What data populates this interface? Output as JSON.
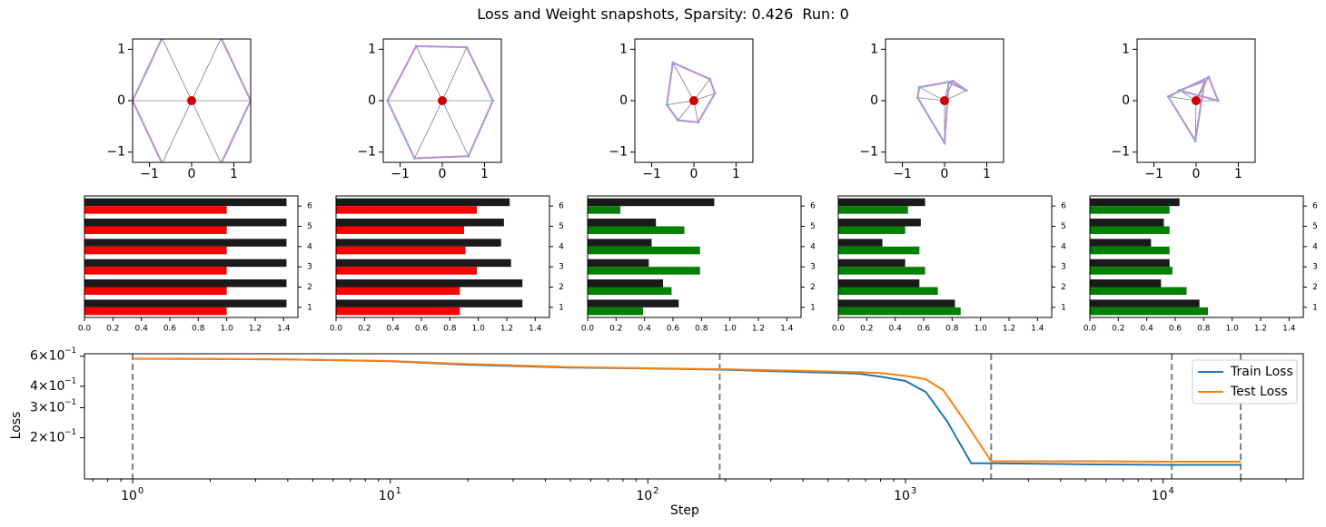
{
  "figure": {
    "title_prefix": "Loss and Weight snapshots, Sparsity:",
    "sparsity": "0.426",
    "run_label": "Run:",
    "run": "0"
  },
  "colors": {
    "black_bar": "#1a1a1a",
    "red_bar": "#ff0000",
    "green_bar": "#008000",
    "train": "#1f77b4",
    "test": "#ff7f0e",
    "dash": "#808080",
    "point": "#d00000",
    "polygon": "#d87fd0",
    "polygon_dash": "#8fa8d8"
  },
  "chart_data": [
    {
      "type": "scatter",
      "name": "snapshot-1",
      "xlim": [
        -1.4,
        1.4
      ],
      "ylim": [
        -1.2,
        1.2
      ],
      "xticks": [
        -1,
        0,
        1
      ],
      "yticks": [
        -1,
        0,
        1
      ],
      "tick_labels": [
        "−1",
        "0",
        "1"
      ],
      "points": [
        [
          1.4,
          0.0
        ],
        [
          0.7,
          1.22
        ],
        [
          -0.7,
          1.22
        ],
        [
          -1.4,
          0.0
        ],
        [
          -0.7,
          -1.22
        ],
        [
          0.7,
          -1.22
        ]
      ]
    },
    {
      "type": "scatter",
      "name": "snapshot-2",
      "xlim": [
        -1.4,
        1.4
      ],
      "ylim": [
        -1.2,
        1.2
      ],
      "xticks": [
        -1,
        0,
        1
      ],
      "yticks": [
        -1,
        0,
        1
      ],
      "tick_labels": [
        "−1",
        "0",
        "1"
      ],
      "points": [
        [
          1.2,
          0.0
        ],
        [
          0.58,
          1.04
        ],
        [
          -0.62,
          1.06
        ],
        [
          -1.3,
          0.0
        ],
        [
          -0.66,
          -1.12
        ],
        [
          0.62,
          -1.08
        ]
      ]
    },
    {
      "type": "scatter",
      "name": "snapshot-3",
      "xlim": [
        -1.4,
        1.4
      ],
      "ylim": [
        -1.2,
        1.2
      ],
      "xticks": [
        -1,
        0,
        1
      ],
      "yticks": [
        -1,
        0,
        1
      ],
      "tick_labels": [
        "−1",
        "0",
        "1"
      ],
      "points": [
        [
          -0.5,
          0.74
        ],
        [
          0.38,
          0.42
        ],
        [
          0.5,
          0.14
        ],
        [
          0.1,
          -0.42
        ],
        [
          -0.38,
          -0.38
        ],
        [
          -0.64,
          -0.08
        ]
      ]
    },
    {
      "type": "scatter",
      "name": "snapshot-4",
      "xlim": [
        -1.4,
        1.4
      ],
      "ylim": [
        -1.2,
        1.2
      ],
      "xticks": [
        -1,
        0,
        1
      ],
      "yticks": [
        -1,
        0,
        1
      ],
      "tick_labels": [
        "−1",
        "0",
        "1"
      ],
      "points": [
        [
          0.52,
          0.2
        ],
        [
          0.2,
          0.38
        ],
        [
          -0.6,
          0.26
        ],
        [
          -0.64,
          0.06
        ],
        [
          0.0,
          -0.82
        ],
        [
          0.1,
          0.36
        ]
      ]
    },
    {
      "type": "scatter",
      "name": "snapshot-5",
      "xlim": [
        -1.4,
        1.4
      ],
      "ylim": [
        -1.2,
        1.2
      ],
      "xticks": [
        -1,
        0,
        1
      ],
      "yticks": [
        -1,
        0,
        1
      ],
      "tick_labels": [
        "−1",
        "0",
        "1"
      ],
      "points": [
        [
          0.52,
          0.0
        ],
        [
          0.3,
          0.46
        ],
        [
          -0.66,
          0.08
        ],
        [
          -0.02,
          -0.78
        ],
        [
          0.2,
          0.38
        ],
        [
          -0.4,
          0.2
        ]
      ]
    },
    {
      "type": "bar",
      "orientation": "horizontal",
      "name": "bars-1",
      "categories": [
        "1",
        "2",
        "3",
        "4",
        "5",
        "6"
      ],
      "xlim": [
        0,
        1.5
      ],
      "xticks": [
        "0.0",
        "0.2",
        "0.4",
        "0.6",
        "0.8",
        "1.0",
        "1.2",
        "1.4"
      ],
      "series": [
        {
          "name": "norm",
          "color": "black",
          "values": [
            1.42,
            1.42,
            1.42,
            1.42,
            1.42,
            1.42
          ]
        },
        {
          "name": "feature",
          "color": "red",
          "values": [
            1.0,
            1.0,
            1.0,
            1.0,
            1.0,
            1.0
          ]
        }
      ]
    },
    {
      "type": "bar",
      "orientation": "horizontal",
      "name": "bars-2",
      "categories": [
        "1",
        "2",
        "3",
        "4",
        "5",
        "6"
      ],
      "xlim": [
        0,
        1.5
      ],
      "xticks": [
        "0.0",
        "0.2",
        "0.4",
        "0.6",
        "0.8",
        "1.0",
        "1.2",
        "1.4"
      ],
      "series": [
        {
          "name": "norm",
          "color": "black",
          "values": [
            1.31,
            1.31,
            1.23,
            1.16,
            1.18,
            1.22
          ]
        },
        {
          "name": "feature",
          "color": "red",
          "values": [
            0.87,
            0.87,
            0.99,
            0.91,
            0.9,
            0.99
          ]
        }
      ]
    },
    {
      "type": "bar",
      "orientation": "horizontal",
      "name": "bars-3",
      "categories": [
        "1",
        "2",
        "3",
        "4",
        "5",
        "6"
      ],
      "xlim": [
        0,
        1.5
      ],
      "xticks": [
        "0.0",
        "0.2",
        "0.4",
        "0.6",
        "0.8",
        "1.0",
        "1.2",
        "1.4"
      ],
      "series": [
        {
          "name": "norm",
          "color": "black",
          "values": [
            0.64,
            0.53,
            0.43,
            0.45,
            0.48,
            0.89
          ]
        },
        {
          "name": "feature",
          "color": "green",
          "values": [
            0.39,
            0.59,
            0.79,
            0.79,
            0.68,
            0.23
          ]
        }
      ]
    },
    {
      "type": "bar",
      "orientation": "horizontal",
      "name": "bars-4",
      "categories": [
        "1",
        "2",
        "3",
        "4",
        "5",
        "6"
      ],
      "xlim": [
        0,
        1.5
      ],
      "xticks": [
        "0.0",
        "0.2",
        "0.4",
        "0.6",
        "0.8",
        "1.0",
        "1.2",
        "1.4"
      ],
      "series": [
        {
          "name": "norm",
          "color": "black",
          "values": [
            0.82,
            0.57,
            0.47,
            0.31,
            0.58,
            0.61
          ]
        },
        {
          "name": "feature",
          "color": "green",
          "values": [
            0.86,
            0.7,
            0.61,
            0.57,
            0.47,
            0.49
          ]
        }
      ]
    },
    {
      "type": "bar",
      "orientation": "horizontal",
      "name": "bars-5",
      "categories": [
        "1",
        "2",
        "3",
        "4",
        "5",
        "6"
      ],
      "xlim": [
        0,
        1.5
      ],
      "xticks": [
        "0.0",
        "0.2",
        "0.4",
        "0.6",
        "0.8",
        "1.0",
        "1.2",
        "1.4"
      ],
      "series": [
        {
          "name": "norm",
          "color": "black",
          "values": [
            0.77,
            0.5,
            0.56,
            0.43,
            0.52,
            0.63
          ]
        },
        {
          "name": "feature",
          "color": "green",
          "values": [
            0.83,
            0.68,
            0.58,
            0.56,
            0.56,
            0.56
          ]
        }
      ]
    },
    {
      "type": "line",
      "name": "loss",
      "xscale": "log",
      "yscale": "log",
      "xlim": [
        0.65,
        35000
      ],
      "ylim": [
        0.115,
        0.62
      ],
      "xlabel": "Step",
      "ylabel": "Loss",
      "xticks": [
        {
          "value": 1,
          "base": "10",
          "exp": "0"
        },
        {
          "value": 10,
          "base": "10",
          "exp": "1"
        },
        {
          "value": 100,
          "base": "10",
          "exp": "2"
        },
        {
          "value": 1000,
          "base": "10",
          "exp": "3"
        },
        {
          "value": 10000,
          "base": "10",
          "exp": "4"
        }
      ],
      "yticks": [
        {
          "value": 0.6,
          "mant": "6",
          "base": "×10",
          "exp": "−1"
        },
        {
          "value": 0.4,
          "mant": "4",
          "base": "×10",
          "exp": "−1"
        },
        {
          "value": 0.3,
          "mant": "3",
          "base": "×10",
          "exp": "−1"
        },
        {
          "value": 0.2,
          "mant": "2",
          "base": "×10",
          "exp": "−1"
        }
      ],
      "vlines": [
        1,
        190,
        2150,
        10800,
        20000
      ],
      "legend": {
        "position": "upper right",
        "entries": [
          "Train Loss",
          "Test Loss"
        ]
      },
      "series": [
        {
          "name": "Train Loss",
          "color": "train",
          "x": [
            1,
            2,
            4,
            10,
            20,
            50,
            100,
            200,
            400,
            650,
            800,
            1000,
            1200,
            1450,
            1800,
            2150,
            5000,
            10000,
            20000
          ],
          "y": [
            0.58,
            0.578,
            0.575,
            0.56,
            0.535,
            0.515,
            0.508,
            0.5,
            0.485,
            0.475,
            0.455,
            0.43,
            0.37,
            0.25,
            0.142,
            0.142,
            0.14,
            0.139,
            0.139
          ]
        },
        {
          "name": "Test Loss",
          "color": "test",
          "x": [
            1,
            2,
            4,
            10,
            20,
            50,
            100,
            200,
            400,
            650,
            800,
            1000,
            1200,
            1400,
            1700,
            2150,
            5000,
            10000,
            20000
          ],
          "y": [
            0.58,
            0.578,
            0.575,
            0.562,
            0.54,
            0.518,
            0.51,
            0.503,
            0.492,
            0.484,
            0.478,
            0.46,
            0.44,
            0.38,
            0.25,
            0.146,
            0.146,
            0.145,
            0.145
          ]
        }
      ]
    }
  ]
}
